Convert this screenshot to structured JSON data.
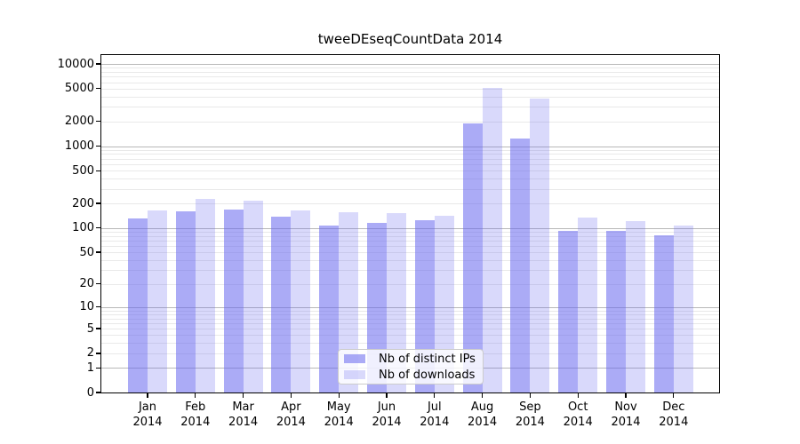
{
  "title": "tweeDEseqCountData 2014",
  "colors": {
    "bar_distinct_ips": "rgba(102,102,238,0.55)",
    "bar_downloads": "rgba(102,102,238,0.25)",
    "grid_major": "#b8b8b8",
    "grid_minor": "#e9e9e9",
    "axis": "#000000",
    "legend_border": "#cccccc"
  },
  "chart_data": {
    "type": "bar",
    "title": "tweeDEseqCountData 2014",
    "xlabel": "",
    "ylabel": "",
    "y_scale": "log1p",
    "grid": "on",
    "legend_position": "inside-bottom-center",
    "ylim": [
      0,
      13000
    ],
    "y_tick_values": [
      0,
      1,
      2,
      5,
      10,
      20,
      50,
      100,
      200,
      500,
      1000,
      2000,
      5000,
      10000
    ],
    "y_tick_labels": [
      "0",
      "1",
      "2",
      "5",
      "10",
      "20",
      "50",
      "100",
      "200",
      "500",
      "1000",
      "2000",
      "5000",
      "10000"
    ],
    "categories": [
      "Jan 2014",
      "Feb 2014",
      "Mar 2014",
      "Apr 2014",
      "May 2014",
      "Jun 2014",
      "Jul 2014",
      "Aug 2014",
      "Sep 2014",
      "Oct 2014",
      "Nov 2014",
      "Dec 2014"
    ],
    "series": [
      {
        "name": "Nb of distinct IPs",
        "color_key": "bar_distinct_ips",
        "values": [
          130,
          158,
          168,
          137,
          107,
          115,
          124,
          1900,
          1245,
          93,
          93,
          82
        ]
      },
      {
        "name": "Nb of downloads",
        "color_key": "bar_downloads",
        "values": [
          163,
          226,
          215,
          163,
          156,
          152,
          141,
          5100,
          3790,
          135,
          121,
          106
        ]
      }
    ]
  }
}
